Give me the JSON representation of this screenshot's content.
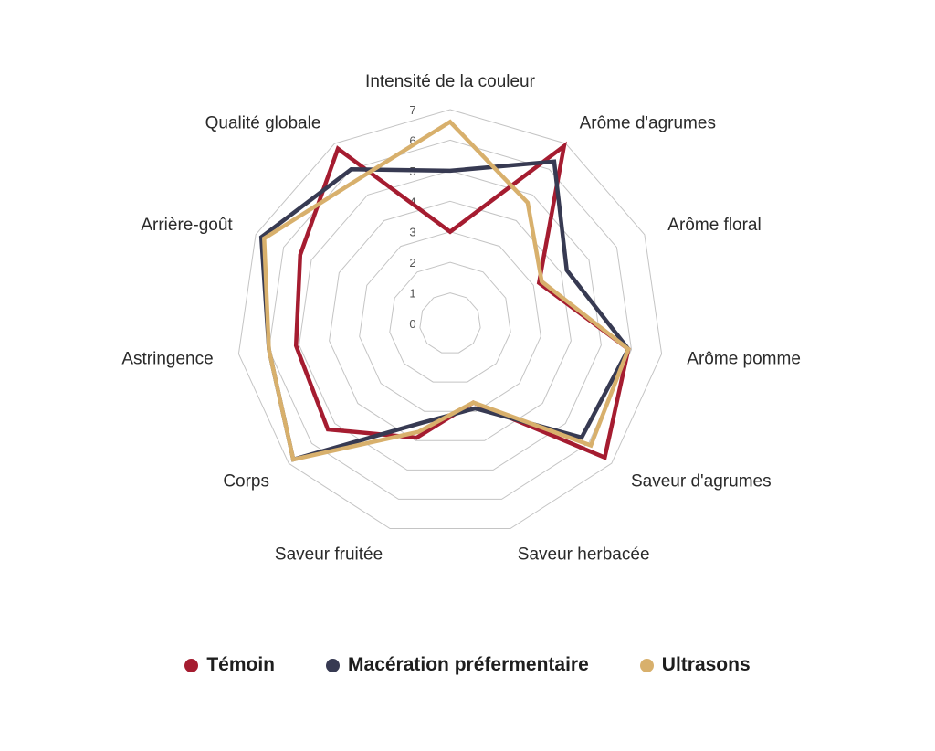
{
  "chart_data": {
    "type": "radar",
    "axes": [
      "Intensité de la couleur",
      "Arôme d'agrumes",
      "Arôme floral",
      "Arôme pomme",
      "Saveur d'agrumes",
      "Saveur herbacée",
      "Saveur fruitée",
      "Corps",
      "Astringence",
      "Arrière-goût",
      "Qualité globale"
    ],
    "ticks": [
      "0",
      "1",
      "2",
      "3",
      "4",
      "5",
      "6",
      "7"
    ],
    "range": [
      0,
      7
    ],
    "grid": true,
    "legend_position": "bottom",
    "series": [
      {
        "name": "Témoin",
        "color": "#a51c30",
        "values": [
          3.0,
          6.9,
          3.2,
          5.9,
          6.7,
          2.7,
          3.9,
          5.3,
          5.1,
          5.4,
          6.8
        ]
      },
      {
        "name": "Macération préfermentaire",
        "color": "#373a52",
        "values": [
          5.0,
          6.3,
          4.2,
          5.9,
          5.7,
          2.9,
          3.4,
          6.8,
          6.0,
          6.8,
          6.0
        ]
      },
      {
        "name": "Ultrasons",
        "color": "#d8b06c",
        "values": [
          6.6,
          4.7,
          3.3,
          5.9,
          6.1,
          2.7,
          3.7,
          6.8,
          6.0,
          6.7,
          5.6
        ]
      }
    ]
  }
}
